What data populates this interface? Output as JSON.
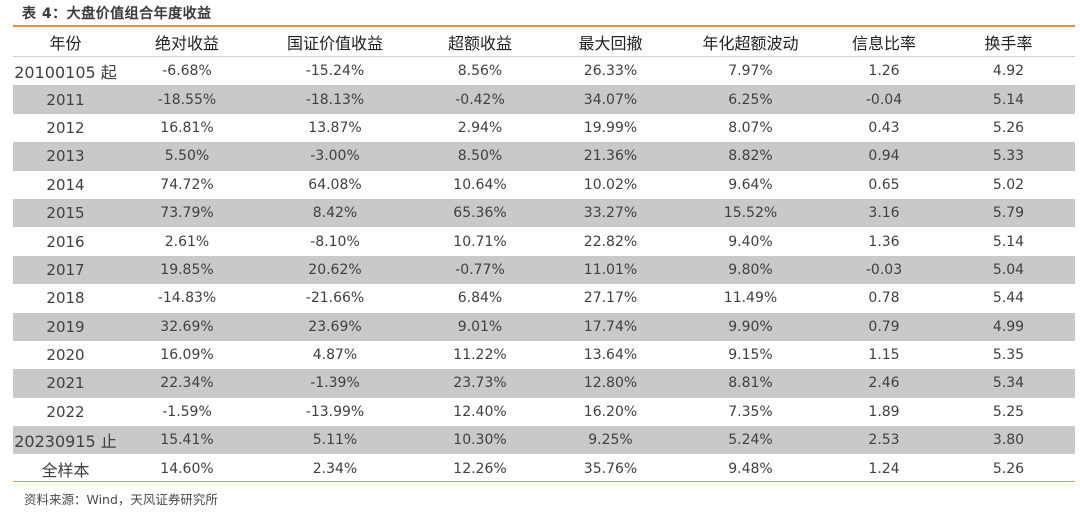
{
  "caption": "表 4：大盘价值组合年度收益",
  "columns": [
    "年份",
    "绝对收益",
    "国证价值收益",
    "超额收益",
    "最大回撤",
    "年化超额波动",
    "信息比率",
    "换手率"
  ],
  "rows": [
    [
      "20100105 起",
      "-6.68%",
      "-15.24%",
      "8.56%",
      "26.33%",
      "7.97%",
      "1.26",
      "4.92"
    ],
    [
      "2011",
      "-18.55%",
      "-18.13%",
      "-0.42%",
      "34.07%",
      "6.25%",
      "-0.04",
      "5.14"
    ],
    [
      "2012",
      "16.81%",
      "13.87%",
      "2.94%",
      "19.99%",
      "8.07%",
      "0.43",
      "5.26"
    ],
    [
      "2013",
      "5.50%",
      "-3.00%",
      "8.50%",
      "21.36%",
      "8.82%",
      "0.94",
      "5.33"
    ],
    [
      "2014",
      "74.72%",
      "64.08%",
      "10.64%",
      "10.02%",
      "9.64%",
      "0.65",
      "5.02"
    ],
    [
      "2015",
      "73.79%",
      "8.42%",
      "65.36%",
      "33.27%",
      "15.52%",
      "3.16",
      "5.79"
    ],
    [
      "2016",
      "2.61%",
      "-8.10%",
      "10.71%",
      "22.82%",
      "9.40%",
      "1.36",
      "5.14"
    ],
    [
      "2017",
      "19.85%",
      "20.62%",
      "-0.77%",
      "11.01%",
      "9.80%",
      "-0.03",
      "5.04"
    ],
    [
      "2018",
      "-14.83%",
      "-21.66%",
      "6.84%",
      "27.17%",
      "11.49%",
      "0.78",
      "5.44"
    ],
    [
      "2019",
      "32.69%",
      "23.69%",
      "9.01%",
      "17.74%",
      "9.90%",
      "0.79",
      "4.99"
    ],
    [
      "2020",
      "16.09%",
      "4.87%",
      "11.22%",
      "13.64%",
      "9.15%",
      "1.15",
      "5.35"
    ],
    [
      "2021",
      "22.34%",
      "-1.39%",
      "23.73%",
      "12.80%",
      "8.81%",
      "2.46",
      "5.34"
    ],
    [
      "2022",
      "-1.59%",
      "-13.99%",
      "12.40%",
      "16.20%",
      "7.35%",
      "1.89",
      "5.25"
    ],
    [
      "20230915 止",
      "15.41%",
      "5.11%",
      "10.30%",
      "9.25%",
      "5.24%",
      "2.53",
      "3.80"
    ],
    [
      "全样本",
      "14.60%",
      "2.34%",
      "12.26%",
      "35.76%",
      "9.48%",
      "1.24",
      "5.26"
    ]
  ],
  "source": "资料来源：Wind，天风证券研究所",
  "colors": {
    "accent_rule": "#e8914a",
    "row_shade": "#c9c9c9"
  }
}
